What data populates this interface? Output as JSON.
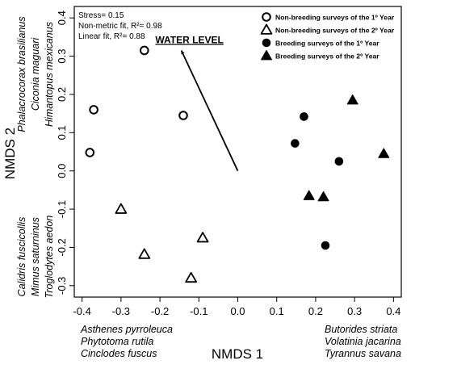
{
  "chart_data": {
    "type": "scatter",
    "xlabel": "NMDS 1",
    "ylabel": "NMDS 2",
    "xlim": [
      -0.42,
      0.42
    ],
    "ylim": [
      -0.33,
      0.43
    ],
    "x_ticks": [
      "-0.4",
      "-0.3",
      "-0.2",
      "-0.1",
      "0.0",
      "0.1",
      "0.2",
      "0.3",
      "0.4"
    ],
    "y_ticks": [
      "-0.3",
      "-0.2",
      "-0.1",
      "0.0",
      "0.1",
      "0.2",
      "0.3",
      "0.4"
    ],
    "grid": false,
    "legend_position": "top-right",
    "stats": [
      "Stress= 0.15",
      "Non-metric fit, R²= 0.98",
      "Linear fit, R²= 0.88"
    ],
    "vector": {
      "label": "WATER LEVEL",
      "from": [
        0.0,
        0.0
      ],
      "to": [
        -0.145,
        0.315
      ]
    },
    "series": [
      {
        "name": "Non-breeding surveys of the 1º Year",
        "marker": "open-circle",
        "x": [
          -0.24,
          -0.37,
          -0.14,
          -0.38
        ],
        "y": [
          0.315,
          0.16,
          0.145,
          0.048
        ]
      },
      {
        "name": "Non-breeding surveys of the 2º Year",
        "marker": "open-triangle",
        "x": [
          -0.3,
          -0.09,
          -0.24,
          -0.12
        ],
        "y": [
          -0.1,
          -0.175,
          -0.218,
          -0.28
        ]
      },
      {
        "name": "Breeding surveys of the 1º Year",
        "marker": "filled-circle",
        "x": [
          0.17,
          0.147,
          0.26,
          0.225
        ],
        "y": [
          0.142,
          0.072,
          0.025,
          -0.195
        ]
      },
      {
        "name": "Breeding surveys of the 2º Year",
        "marker": "filled-triangle",
        "x": [
          0.295,
          0.375,
          0.183,
          0.22
        ],
        "y": [
          0.185,
          0.045,
          -0.065,
          -0.068
        ]
      }
    ],
    "species_annotations": {
      "left_top": [
        "Phalacrocorax brasilianus",
        "Ciconia maguari",
        "Himantopus mexicanus"
      ],
      "left_bottom": [
        "Calidris fuscicollis",
        "Mimus saturninus",
        "Troglodytes aedon"
      ],
      "bottom_left": [
        "Asthenes pyrroleuca",
        "Phytotoma rutila",
        "Cinclodes fuscus"
      ],
      "bottom_right": [
        "Butorides striata",
        "Volatinia jacarina",
        "Tyrannus savana"
      ]
    }
  }
}
